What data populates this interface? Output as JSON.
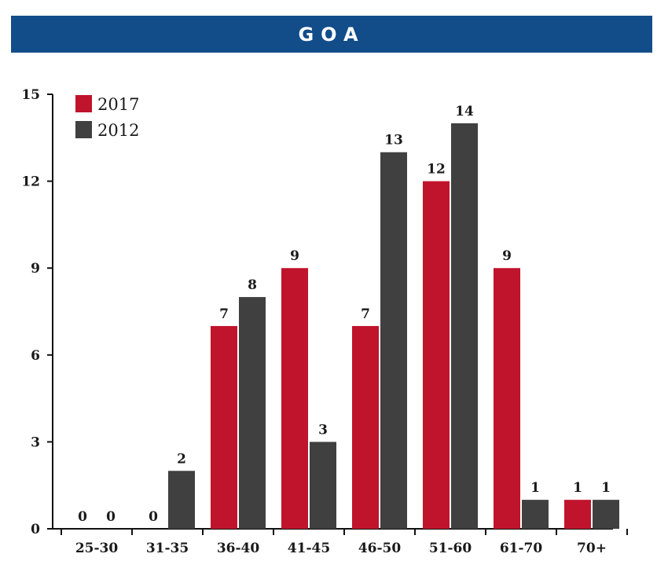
{
  "header": {
    "title": "GOA"
  },
  "colors": {
    "banner": "#124d8a",
    "series_2017": "#c0142c",
    "series_2012": "#404040"
  },
  "chart_data": {
    "type": "bar",
    "categories": [
      "25-30",
      "31-35",
      "36-40",
      "41-45",
      "46-50",
      "51-60",
      "61-70",
      "70+"
    ],
    "series": [
      {
        "name": "2017",
        "values": [
          0,
          0,
          7,
          9,
          7,
          12,
          9,
          1
        ]
      },
      {
        "name": "2012",
        "values": [
          0,
          2,
          8,
          3,
          13,
          14,
          1,
          1
        ]
      }
    ],
    "yticks": [
      "0",
      "3",
      "6",
      "9",
      "12",
      "15"
    ],
    "ylim": [
      0,
      15
    ],
    "legend": "top-left",
    "grid": false
  }
}
